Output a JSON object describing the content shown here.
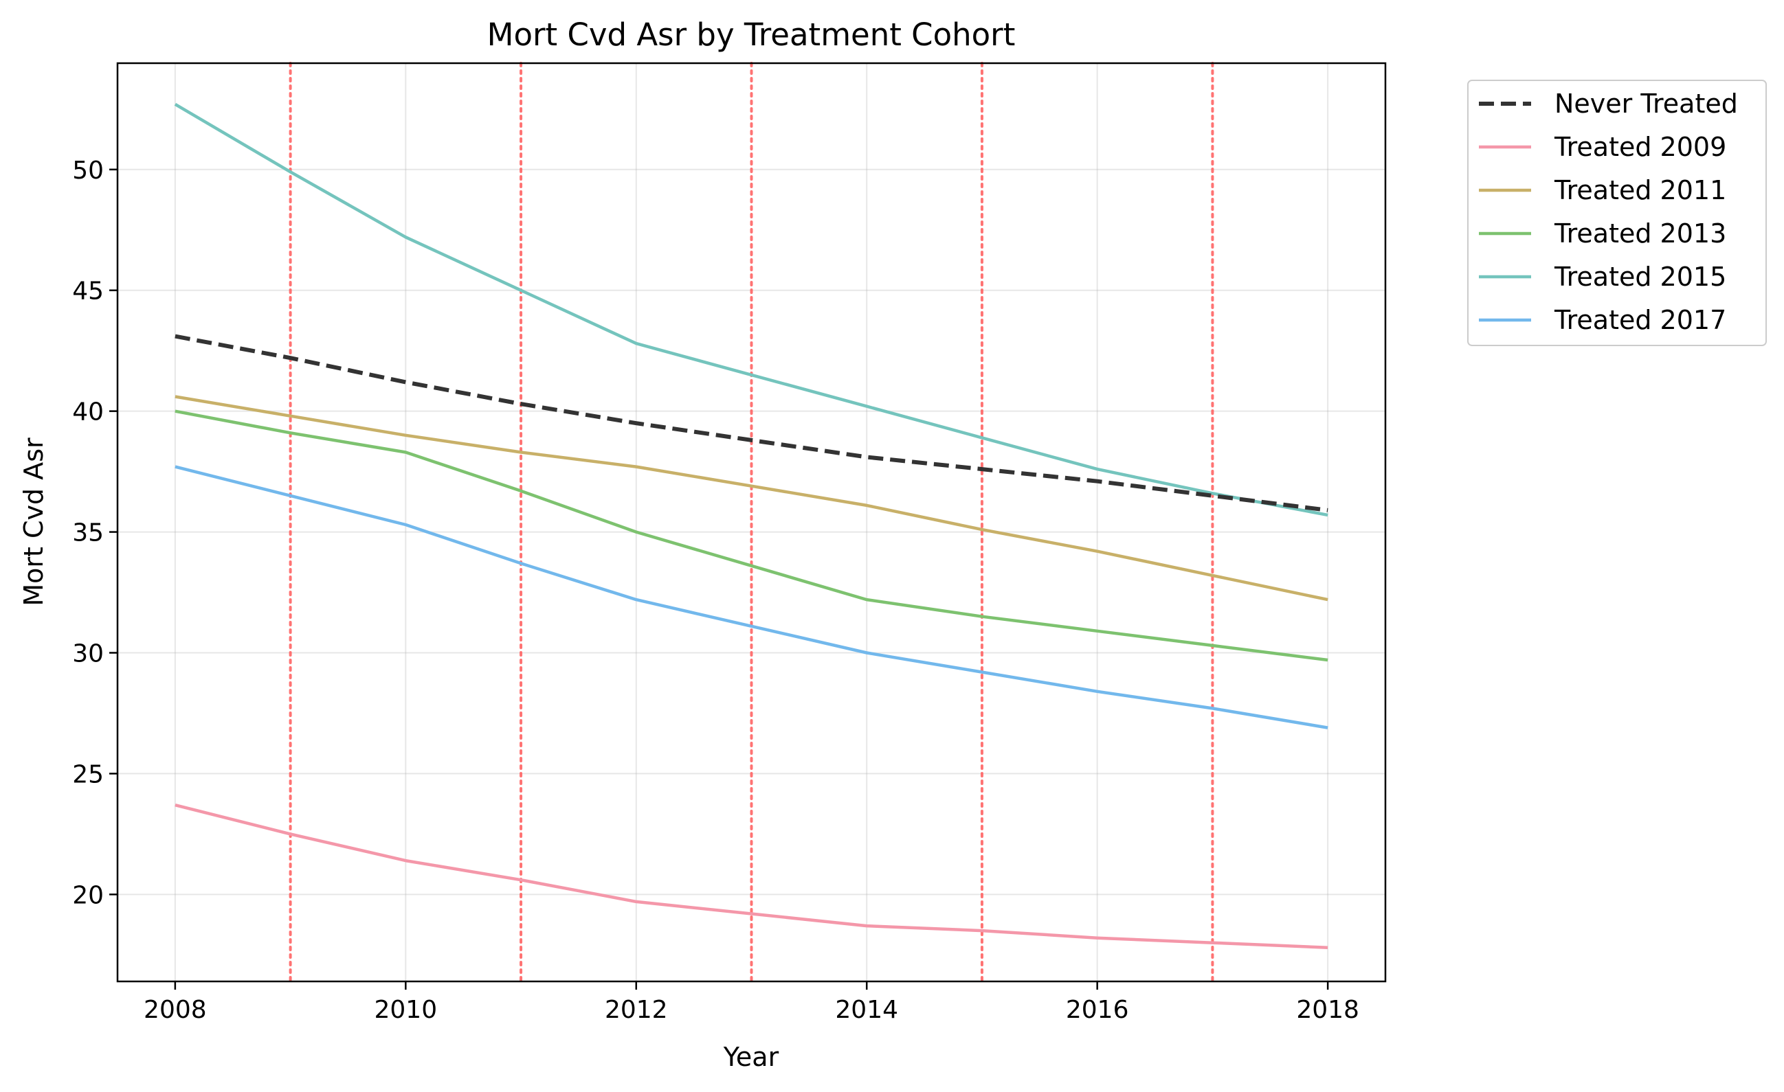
{
  "chart_data": {
    "type": "line",
    "title": "Mort Cvd Asr by Treatment Cohort",
    "xlabel": "Year",
    "ylabel": "Mort Cvd Asr",
    "xlim": [
      2007.5,
      2018.5
    ],
    "ylim": [
      16.4,
      54.4
    ],
    "x_ticks": [
      2008,
      2010,
      2012,
      2014,
      2016,
      2018
    ],
    "y_ticks": [
      20,
      25,
      30,
      35,
      40,
      45,
      50
    ],
    "x": [
      2008,
      2009,
      2010,
      2011,
      2012,
      2013,
      2014,
      2015,
      2016,
      2017,
      2018
    ],
    "grid": true,
    "legend_position": "outside-right-top",
    "treatment_years": [
      2009,
      2011,
      2013,
      2015,
      2017
    ],
    "treatment_line_color": "#ff5a5a",
    "series": [
      {
        "name": "Never Treated",
        "color": "#333333",
        "dashed": true,
        "values": [
          43.1,
          42.2,
          41.2,
          40.3,
          39.5,
          38.8,
          38.1,
          37.6,
          37.1,
          36.5,
          35.9
        ]
      },
      {
        "name": "Treated 2009",
        "color": "#f497a9",
        "dashed": false,
        "values": [
          23.7,
          22.5,
          21.4,
          20.6,
          19.7,
          19.2,
          18.7,
          18.5,
          18.2,
          18.0,
          17.8
        ]
      },
      {
        "name": "Treated 2011",
        "color": "#c8b068",
        "dashed": false,
        "values": [
          40.6,
          39.8,
          39.0,
          38.3,
          37.7,
          36.9,
          36.1,
          35.1,
          34.2,
          33.2,
          32.2
        ]
      },
      {
        "name": "Treated 2013",
        "color": "#7dc26f",
        "dashed": false,
        "values": [
          40.0,
          39.1,
          38.3,
          36.7,
          35.0,
          33.6,
          32.2,
          31.5,
          30.9,
          30.3,
          29.7
        ]
      },
      {
        "name": "Treated 2015",
        "color": "#74c4bd",
        "dashed": false,
        "values": [
          52.7,
          49.9,
          47.2,
          45.0,
          42.8,
          41.5,
          40.2,
          38.9,
          37.6,
          36.6,
          35.7
        ]
      },
      {
        "name": "Treated 2017",
        "color": "#72b8ec",
        "dashed": false,
        "values": [
          37.7,
          36.5,
          35.3,
          33.7,
          32.2,
          31.1,
          30.0,
          29.2,
          28.4,
          27.7,
          26.9
        ]
      }
    ]
  }
}
